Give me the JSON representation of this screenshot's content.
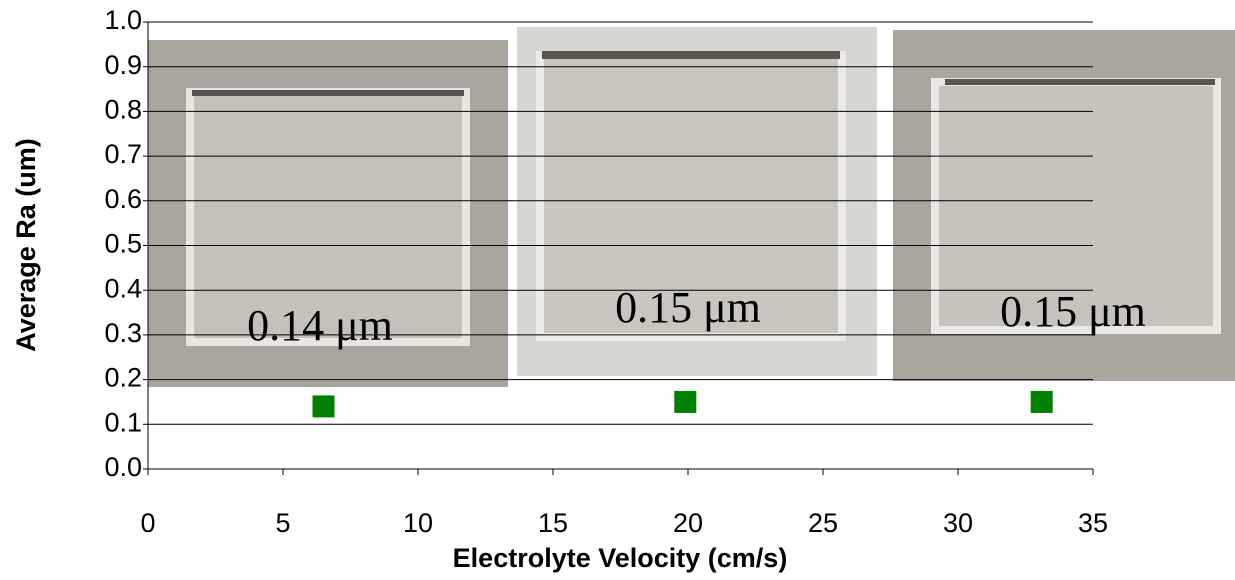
{
  "chart_data": {
    "type": "scatter",
    "xlabel": "Electrolyte Velocity (cm/s)",
    "ylabel": "Average Ra (um)",
    "x": [
      6.5,
      19.9,
      33.1
    ],
    "series": [
      {
        "color": "#008000",
        "values": [
          0.14,
          0.15,
          0.15
        ]
      }
    ],
    "annotations": [
      "0.14 μm",
      "0.15 μm",
      "0.15 μm"
    ],
    "xlim": [
      0,
      35
    ],
    "xticks": [
      0,
      5,
      10,
      15,
      20,
      25,
      30,
      35
    ],
    "ylim": [
      0,
      1
    ],
    "yticks": [
      {
        "value": 0,
        "label": "0.0"
      },
      0.1,
      0.2,
      0.3,
      0.4,
      0.5,
      0.6,
      0.7,
      0.8,
      0.9,
      {
        "value": 1,
        "label": "1.0"
      }
    ],
    "grid": true
  }
}
